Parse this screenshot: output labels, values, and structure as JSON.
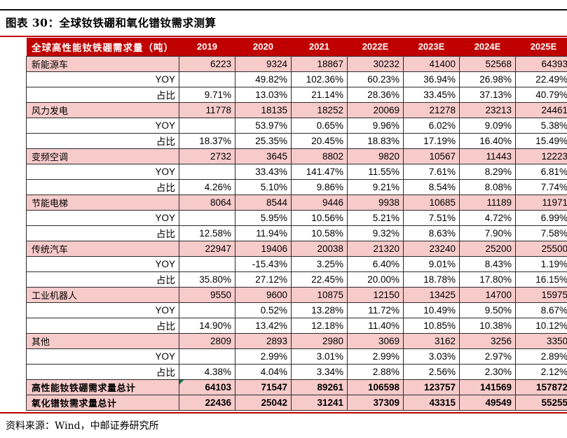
{
  "figure": {
    "title": "图表 30：全球钕铁硼和氧化镨钕需求测算",
    "source": "资料来源：Wind，中邮证券研究所"
  },
  "colors": {
    "header_bg": "#C00000",
    "category_row_bg": "#F8CBCB",
    "accent_line": "#C00000",
    "corner_flag_green": "#1F7A3D"
  },
  "table": {
    "columns": [
      "全球高性能钕铁硼需求量（吨）",
      "2019",
      "2020",
      "2021",
      "2022E",
      "2023E",
      "2024E",
      "2025E"
    ],
    "rows": [
      {
        "type": "category",
        "label": "新能源车",
        "values": [
          "6223",
          "9324",
          "18867",
          "30232",
          "41400",
          "52568",
          "64393"
        ]
      },
      {
        "type": "sub",
        "label": "YOY",
        "values": [
          "",
          "49.82%",
          "102.36%",
          "60.23%",
          "36.94%",
          "26.98%",
          "22.49%"
        ]
      },
      {
        "type": "sub",
        "label": "占比",
        "values": [
          "9.71%",
          "13.03%",
          "21.14%",
          "28.36%",
          "33.45%",
          "37.13%",
          "40.79%"
        ]
      },
      {
        "type": "category",
        "label": "风力发电",
        "values": [
          "11778",
          "18135",
          "18252",
          "20069",
          "21278",
          "23213",
          "24461"
        ]
      },
      {
        "type": "sub",
        "label": "YOY",
        "values": [
          "",
          "53.97%",
          "0.65%",
          "9.96%",
          "6.02%",
          "9.09%",
          "5.38%"
        ]
      },
      {
        "type": "sub",
        "label": "占比",
        "values": [
          "18.37%",
          "25.35%",
          "20.45%",
          "18.83%",
          "17.19%",
          "16.40%",
          "15.49%"
        ]
      },
      {
        "type": "category",
        "label": "变频空调",
        "values": [
          "2732",
          "3645",
          "8802",
          "9820",
          "10567",
          "11443",
          "12223"
        ]
      },
      {
        "type": "sub",
        "label": "YOY",
        "values": [
          "",
          "33.43%",
          "141.47%",
          "11.55%",
          "7.61%",
          "8.29%",
          "6.81%"
        ]
      },
      {
        "type": "sub",
        "label": "占比",
        "values": [
          "4.26%",
          "5.10%",
          "9.86%",
          "9.21%",
          "8.54%",
          "8.08%",
          "7.74%"
        ]
      },
      {
        "type": "category",
        "label": "节能电梯",
        "values": [
          "8064",
          "8544",
          "9446",
          "9938",
          "10685",
          "11189",
          "11971"
        ]
      },
      {
        "type": "sub",
        "label": "YOY",
        "values": [
          "",
          "5.95%",
          "10.56%",
          "5.21%",
          "7.51%",
          "4.72%",
          "6.99%"
        ]
      },
      {
        "type": "sub",
        "label": "占比",
        "values": [
          "12.58%",
          "11.94%",
          "10.58%",
          "9.32%",
          "8.63%",
          "7.90%",
          "7.58%"
        ]
      },
      {
        "type": "category",
        "label": "传统汽车",
        "values": [
          "22947",
          "19406",
          "20038",
          "21320",
          "23240",
          "25200",
          "25500"
        ]
      },
      {
        "type": "sub",
        "label": "YOY",
        "values": [
          "",
          "-15.43%",
          "3.25%",
          "6.40%",
          "9.01%",
          "8.43%",
          "1.19%"
        ]
      },
      {
        "type": "sub",
        "label": "占比",
        "values": [
          "35.80%",
          "27.12%",
          "22.45%",
          "20.00%",
          "18.78%",
          "17.80%",
          "16.15%"
        ]
      },
      {
        "type": "category",
        "label": "工业机器人",
        "values": [
          "9550",
          "9600",
          "10875",
          "12150",
          "13425",
          "14700",
          "15975"
        ]
      },
      {
        "type": "sub",
        "label": "YOY",
        "values": [
          "",
          "0.52%",
          "13.28%",
          "11.72%",
          "10.49%",
          "9.50%",
          "8.67%"
        ]
      },
      {
        "type": "sub",
        "label": "占比",
        "values": [
          "14.90%",
          "13.42%",
          "12.18%",
          "11.40%",
          "10.85%",
          "10.38%",
          "10.12%"
        ]
      },
      {
        "type": "category",
        "label": "其他",
        "values": [
          "2809",
          "2893",
          "2980",
          "3069",
          "3162",
          "3256",
          "3350"
        ]
      },
      {
        "type": "sub",
        "label": "YOY",
        "values": [
          "",
          "2.99%",
          "3.01%",
          "2.99%",
          "3.03%",
          "2.97%",
          "2.89%"
        ]
      },
      {
        "type": "sub",
        "label": "占比",
        "values": [
          "4.38%",
          "4.04%",
          "3.34%",
          "2.88%",
          "2.56%",
          "2.30%",
          "2.12%"
        ]
      },
      {
        "type": "total",
        "label": "高性能钕铁硼需求量总计",
        "flag": true,
        "values": [
          "64103",
          "71547",
          "89261",
          "106598",
          "123757",
          "141569",
          "157872"
        ]
      },
      {
        "type": "total",
        "label": "氧化镨钕需求量总计",
        "values": [
          "22436",
          "25042",
          "31241",
          "37309",
          "43315",
          "49549",
          "55255"
        ]
      }
    ]
  }
}
